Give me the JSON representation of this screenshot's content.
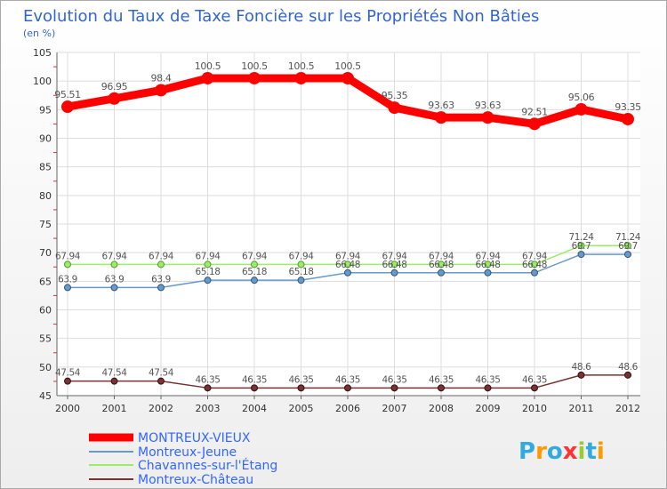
{
  "chart_data": {
    "type": "line",
    "title": "Evolution du Taux de Taxe Foncière sur les Propriétés Non Bâties",
    "subtitle": "(en %)",
    "xlabel": "",
    "ylabel": "",
    "ylim": [
      45,
      105
    ],
    "yticks": [
      "45",
      "50",
      "55",
      "60",
      "65",
      "70",
      "75",
      "80",
      "85",
      "90",
      "95",
      "100",
      "105"
    ],
    "grid": true,
    "legend_position": "bottom-left",
    "categories": [
      "2000",
      "2001",
      "2002",
      "2003",
      "2004",
      "2005",
      "2006",
      "2007",
      "2008",
      "2009",
      "2010",
      "2011",
      "2012"
    ],
    "series": [
      {
        "name": "MONTREUX-VIEUX",
        "color": "#ff0000",
        "values": [
          95.51,
          96.95,
          98.4,
          100.5,
          100.5,
          100.5,
          100.5,
          95.35,
          93.63,
          93.63,
          92.51,
          95.06,
          93.35
        ],
        "labels": [
          "95.51",
          "96.95",
          "98.4",
          "100.5",
          "100.5",
          "100.5",
          "100.5",
          "95.35",
          "93.63",
          "93.63",
          "92.51",
          "95.06",
          "93.35"
        ]
      },
      {
        "name": "Montreux-Jeune",
        "color": "#6699cc",
        "values": [
          63.9,
          63.9,
          63.9,
          65.18,
          65.18,
          65.18,
          66.48,
          66.48,
          66.48,
          66.48,
          66.48,
          69.7,
          69.7
        ],
        "labels": [
          "63.9",
          "63.9",
          "63.9",
          "65.18",
          "65.18",
          "65.18",
          "66.48",
          "66.48",
          "66.48",
          "66.48",
          "66.48",
          "69.7",
          "69.7"
        ]
      },
      {
        "name": "Chavannes-sur-l'Étang",
        "color": "#99ee66",
        "values": [
          67.94,
          67.94,
          67.94,
          67.94,
          67.94,
          67.94,
          67.94,
          67.94,
          67.94,
          67.94,
          67.94,
          71.24,
          71.24
        ],
        "labels": [
          "67.94",
          "67.94",
          "67.94",
          "67.94",
          "67.94",
          "67.94",
          "67.94",
          "67.94",
          "67.94",
          "67.94",
          "67.94",
          "71.24",
          "71.24"
        ]
      },
      {
        "name": "Montreux-Château",
        "color": "#773333",
        "values": [
          47.54,
          47.54,
          47.54,
          46.35,
          46.35,
          46.35,
          46.35,
          46.35,
          46.35,
          46.35,
          46.35,
          48.6,
          48.6
        ],
        "labels": [
          "47.54",
          "47.54",
          "47.54",
          "46.35",
          "46.35",
          "46.35",
          "46.35",
          "46.35",
          "46.35",
          "46.35",
          "46.35",
          "48.6",
          "48.6"
        ]
      }
    ]
  },
  "colors": {
    "title": "#3366cc",
    "legend_text": "#3366ff",
    "grid": "#dddddd",
    "axis": "#666666",
    "tick_label": "#333333",
    "value_label": "#555555"
  },
  "brand": {
    "logo_text": "Proxiti",
    "logo_letters": [
      "P",
      "r",
      "o",
      "x",
      "i",
      "t",
      "i"
    ],
    "logo_colors": [
      "#33aadd",
      "#ff9900",
      "#33aadd",
      "#ff3333",
      "#99cc33",
      "#33aadd",
      "#ff9900"
    ]
  }
}
